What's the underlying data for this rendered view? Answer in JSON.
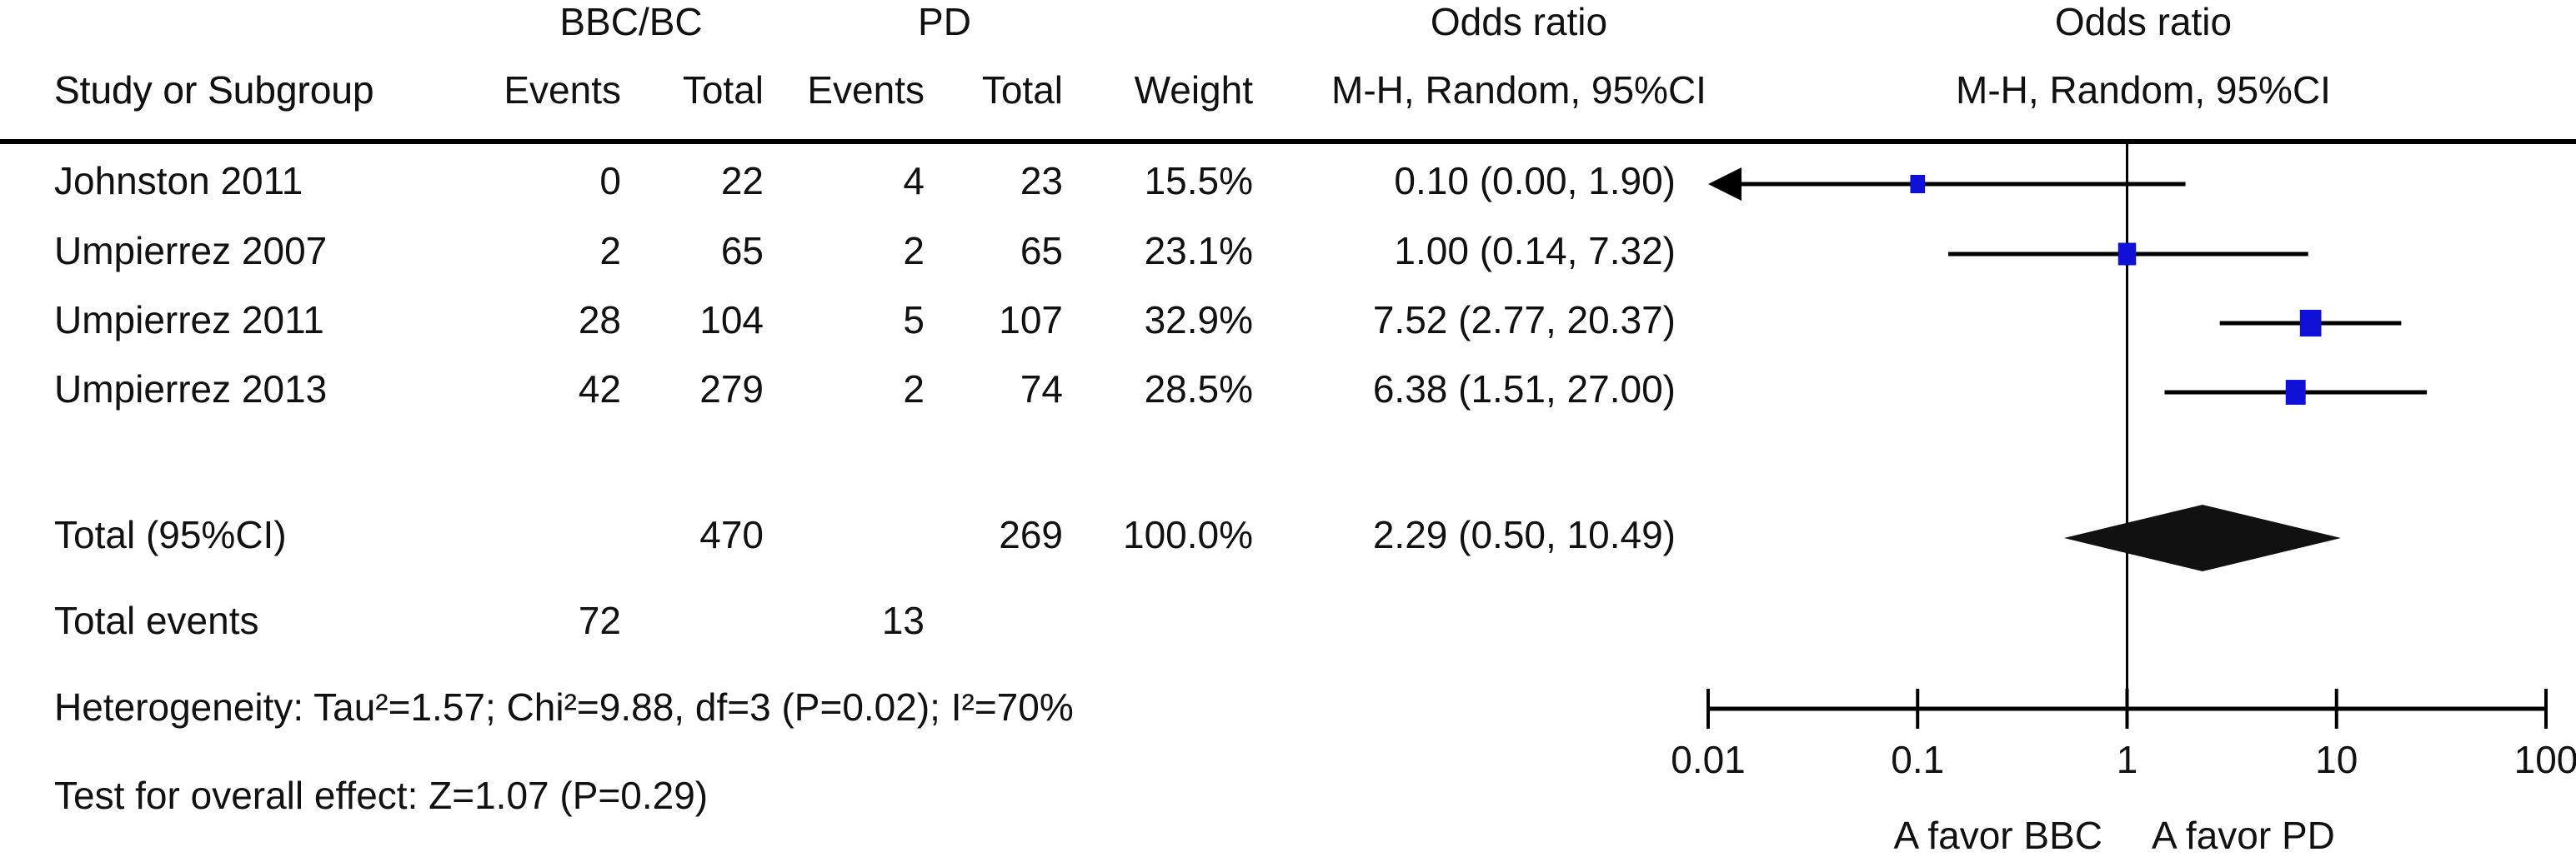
{
  "chart_data": {
    "type": "forest",
    "group_headers": [
      "BBC/BC",
      "PD",
      "Odds ratio",
      "Odds ratio"
    ],
    "column_headers": [
      "Study or Subgroup",
      "Events",
      "Total",
      "Events",
      "Total",
      "Weight",
      "M-H, Random, 95%CI",
      "M-H, Random, 95%CI"
    ],
    "studies": [
      {
        "name": "Johnston 2011",
        "events_bbc": 0,
        "total_bbc": 22,
        "events_pd": 4,
        "total_pd": 23,
        "weight": 15.5,
        "weight_label": "15.5%",
        "or": 0.1,
        "lower": 0,
        "upper": 1.9,
        "estimate_label": "0.10 (0.00, 1.90)"
      },
      {
        "name": "Umpierrez 2007",
        "events_bbc": 2,
        "total_bbc": 65,
        "events_pd": 2,
        "total_pd": 65,
        "weight": 23.1,
        "weight_label": "23.1%",
        "or": 1,
        "lower": 0.14,
        "upper": 7.32,
        "estimate_label": "1.00 (0.14, 7.32)"
      },
      {
        "name": "Umpierrez 2011",
        "events_bbc": 28,
        "total_bbc": 104,
        "events_pd": 5,
        "total_pd": 107,
        "weight": 32.9,
        "weight_label": "32.9%",
        "or": 7.52,
        "lower": 2.77,
        "upper": 20.37,
        "estimate_label": "7.52 (2.77, 20.37)"
      },
      {
        "name": "Umpierrez 2013",
        "events_bbc": 42,
        "total_bbc": 279,
        "events_pd": 2,
        "total_pd": 74,
        "weight": 28.5,
        "weight_label": "28.5%",
        "or": 6.38,
        "lower": 1.51,
        "upper": 27,
        "estimate_label": "6.38 (1.51, 27.00)"
      }
    ],
    "total": {
      "name": "Total (95%CI)",
      "total_bbc": 470,
      "total_pd": 269,
      "weight_label": "100.0%",
      "or": 2.29,
      "lower": 0.5,
      "upper": 10.49,
      "estimate_label": "2.29 (0.50, 10.49)"
    },
    "total_events": {
      "name": "Total events",
      "events_bbc": 72,
      "events_pd": 13
    },
    "heterogeneity": "Heterogeneity: Tau²=1.57; Chi²=9.88, df=3 (P=0.02); I²=70%",
    "overall_effect": "Test for overall effect: Z=1.07 (P=0.29)",
    "xscale": "log",
    "xlim": [
      0.01,
      100
    ],
    "xticks": [
      0.01,
      0.1,
      1,
      10,
      100
    ],
    "favor_labels": [
      "A favor BBC",
      "A favor PD"
    ],
    "square_color": "#1010d8",
    "mark_color": "#000000"
  }
}
